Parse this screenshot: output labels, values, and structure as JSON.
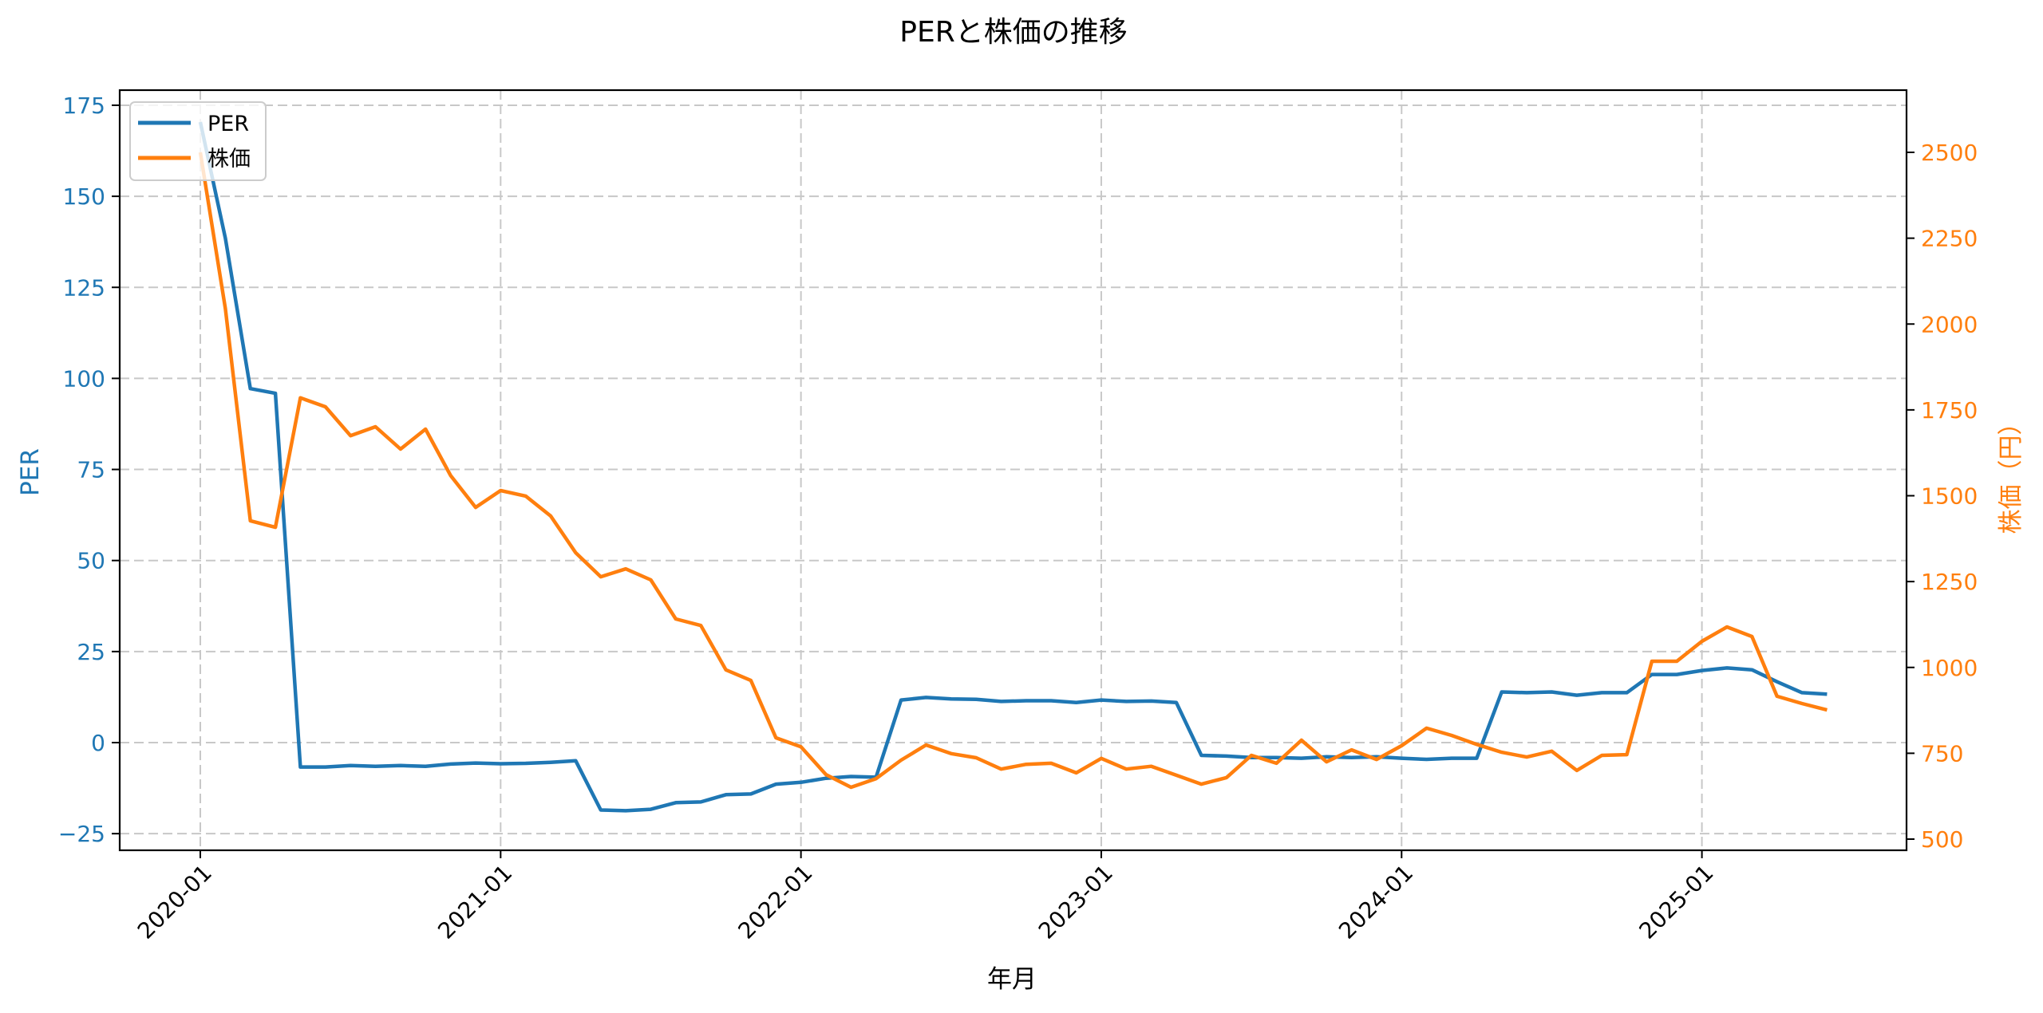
{
  "colors": {
    "per": "#1f77b4",
    "price": "#ff7f0e",
    "grid": "#c8c8c8",
    "axis": "#000000"
  },
  "chart_data": {
    "type": "line",
    "title": "PERと株価の推移",
    "xlabel": "年月",
    "ylabel_left": "PER",
    "ylabel_right": "株価（円）",
    "legend": {
      "position": "upper left",
      "entries": [
        "PER",
        "株価"
      ]
    },
    "grid": true,
    "ylim_left": [
      -28,
      179
    ],
    "ylim_right": [
      475,
      2690
    ],
    "yticks_left": [
      -25,
      0,
      25,
      50,
      75,
      100,
      125,
      150,
      175
    ],
    "yticks_right": [
      500,
      750,
      1000,
      1250,
      1500,
      1750,
      2000,
      2250,
      2500
    ],
    "xticks": [
      "2020-01",
      "2021-01",
      "2022-01",
      "2023-01",
      "2024-01",
      "2025-01"
    ],
    "x": [
      "2020-01",
      "2020-02",
      "2020-03",
      "2020-04",
      "2020-05",
      "2020-06",
      "2020-07",
      "2020-08",
      "2020-09",
      "2020-10",
      "2020-11",
      "2020-12",
      "2021-01",
      "2021-02",
      "2021-03",
      "2021-04",
      "2021-05",
      "2021-06",
      "2021-07",
      "2021-08",
      "2021-09",
      "2021-10",
      "2021-11",
      "2021-12",
      "2022-01",
      "2022-02",
      "2022-03",
      "2022-04",
      "2022-05",
      "2022-06",
      "2022-07",
      "2022-08",
      "2022-09",
      "2022-10",
      "2022-11",
      "2022-12",
      "2023-01",
      "2023-02",
      "2023-03",
      "2023-04",
      "2023-05",
      "2023-06",
      "2023-07",
      "2023-08",
      "2023-09",
      "2023-10",
      "2023-11",
      "2023-12",
      "2024-01",
      "2024-02",
      "2024-03",
      "2024-04",
      "2024-05",
      "2024-06",
      "2024-07",
      "2024-08",
      "2024-09",
      "2024-10",
      "2024-11",
      "2024-12",
      "2025-01",
      "2025-02",
      "2025-03",
      "2025-04",
      "2025-05",
      "2025-06"
    ],
    "series": [
      {
        "name": "PER",
        "axis": "left",
        "values": [
          170.4,
          138.5,
          97.2,
          95.9,
          -6.7,
          -6.7,
          -6.3,
          -6.5,
          -6.3,
          -6.5,
          -5.9,
          -5.6,
          -5.8,
          -5.7,
          -5.4,
          -5.0,
          -18.5,
          -18.7,
          -18.3,
          -16.5,
          -16.3,
          -14.3,
          -14.1,
          -11.4,
          -10.9,
          -9.8,
          -9.3,
          -9.5,
          11.7,
          12.4,
          12.0,
          11.9,
          11.3,
          11.5,
          11.5,
          11.0,
          11.7,
          11.3,
          11.4,
          11.0,
          -3.5,
          -3.7,
          -4.1,
          -4.1,
          -4.3,
          -3.9,
          -4.1,
          -3.9,
          -4.3,
          -4.6,
          -4.3,
          -4.3,
          13.9,
          13.7,
          13.9,
          13.0,
          13.7,
          13.7,
          18.7,
          18.7,
          19.8,
          20.5,
          20.0,
          16.7,
          13.7,
          13.3
        ]
      },
      {
        "name": "株価",
        "axis": "right",
        "values": [
          2500,
          2045,
          1427,
          1408,
          1785,
          1759,
          1675,
          1701,
          1636,
          1694,
          1559,
          1466,
          1515,
          1499,
          1441,
          1334,
          1264,
          1287,
          1255,
          1141,
          1122,
          993,
          962,
          795,
          769,
          688,
          651,
          676,
          730,
          774,
          749,
          737,
          704,
          718,
          721,
          693,
          735,
          704,
          712,
          686,
          660,
          679,
          744,
          721,
          788,
          725,
          760,
          732,
          772,
          823,
          802,
          776,
          753,
          739,
          756,
          700,
          744,
          746,
          1018,
          1018,
          1076,
          1118,
          1090,
          916,
          895,
          876
        ]
      }
    ]
  }
}
